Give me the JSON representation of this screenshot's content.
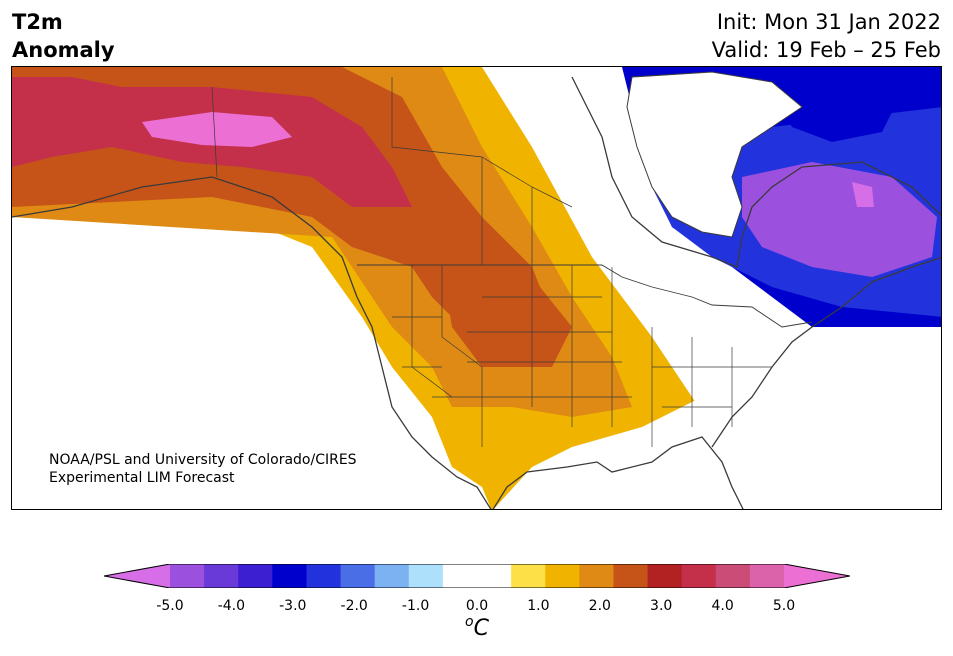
{
  "header": {
    "title_line1": "T2m",
    "title_line2": "Anomaly",
    "init_text": "Init: Mon 31 Jan 2022",
    "valid_text": "Valid: 19 Feb – 25 Feb"
  },
  "map": {
    "credit_line1": "NOAA/PSL and University of Colorado/CIRES",
    "credit_line2": "Experimental LIM Forecast",
    "region_anomalies": {
      "alaska_core": 4.5,
      "alaska": 3.0,
      "yukon_bc": 2.0,
      "canadian_prairies": 1.5,
      "western_us": 1.0,
      "us_plains": 2.0,
      "great_lakes": -0.5,
      "hudson_bay": -2.5,
      "quebec_labrador": -4.5,
      "northern_quebec_core": -5.0,
      "arctic_islands": -3.0,
      "southeast_us": 0.0
    }
  },
  "colorbar": {
    "min": -5.0,
    "max": 5.0,
    "step": 0.5,
    "tick_labels": [
      "-5.0",
      "-4.0",
      "-3.0",
      "-2.0",
      "-1.0",
      "0.0",
      "1.0",
      "2.0",
      "3.0",
      "4.0",
      "5.0"
    ],
    "unit_prefix": "o",
    "unit_main": "C",
    "colors": [
      "#d66ee8",
      "#9b50de",
      "#6a3ad8",
      "#3c1fd0",
      "#0000cd",
      "#2233dd",
      "#4a6ee6",
      "#7db2f2",
      "#ade0fb",
      "#ffffff",
      "#ffffff",
      "#fde047",
      "#f0b400",
      "#de8a14",
      "#c65418",
      "#b22222",
      "#c4304a",
      "#cc4c78",
      "#da63aa",
      "#ec6fd4"
    ]
  }
}
